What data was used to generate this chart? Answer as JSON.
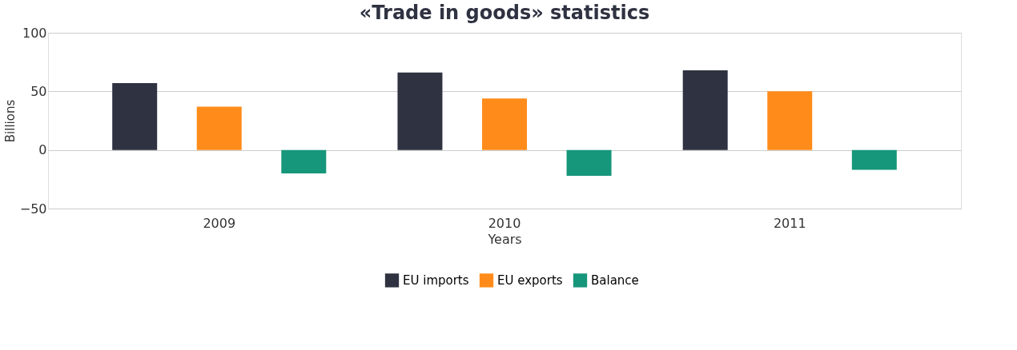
{
  "chart_data": {
    "type": "bar",
    "title": "«Trade in goods» statistics",
    "xlabel": "Years",
    "ylabel": "Billions",
    "categories": [
      "2009",
      "2010",
      "2011"
    ],
    "series": [
      {
        "name": "EU imports",
        "color": "#2f3241",
        "values": [
          57,
          66,
          68
        ]
      },
      {
        "name": "EU exports",
        "color": "#ff8c1a",
        "values": [
          37,
          44,
          50
        ]
      },
      {
        "name": "Balance",
        "color": "#16967a",
        "values": [
          -20,
          -22,
          -17
        ]
      }
    ],
    "ylim": [
      -50,
      100
    ],
    "yticks": [
      -50,
      0,
      50,
      100
    ],
    "grid": "y",
    "legend": "bottom"
  }
}
